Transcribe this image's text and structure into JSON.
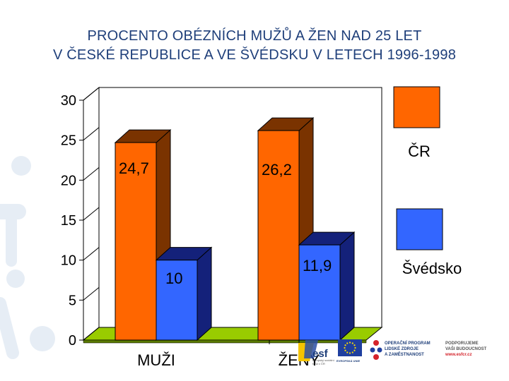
{
  "title": {
    "line1": "PROCENTO OBÉZNÍCH MUŽŮ A ŽEN NAD 25 LET",
    "line2": "V ČESKÉ REPUBLICE A VE ŠVÉDSKU V LETECH 1996-1998"
  },
  "chart_data": {
    "type": "bar",
    "style": "3d-clustered-column",
    "categories": [
      "MUŽI",
      "ŽENY"
    ],
    "series": [
      {
        "name": "ČR",
        "values": [
          24.7,
          26.2
        ],
        "labels": [
          "24,7",
          "26,2"
        ],
        "color": "#ff6600",
        "side_color": "#7a3300"
      },
      {
        "name": "Švédsko",
        "values": [
          10,
          11.9
        ],
        "labels": [
          "10",
          "11,9"
        ],
        "color": "#3366ff",
        "side_color": "#14217a"
      }
    ],
    "yticks": [
      0,
      5,
      10,
      15,
      20,
      25,
      30
    ],
    "ylim": [
      0,
      30
    ],
    "grid": false,
    "floor_color": "#99cc00",
    "legend_position": "right"
  },
  "footer": {
    "esf_logo": "esf",
    "esf_caption": "evropský sociální fond v ČR",
    "eu_caption": "EVROPSKÁ UNIE",
    "op_line1": "OPERAČNÍ PROGRAM",
    "op_line2": "LIDSKÉ ZDROJE",
    "op_line3": "A ZAMĚSTNANOST",
    "support_line1": "PODPORUJEME",
    "support_line2": "VAŠI BUDOUCNOST",
    "support_url": "www.esfcr.cz"
  }
}
